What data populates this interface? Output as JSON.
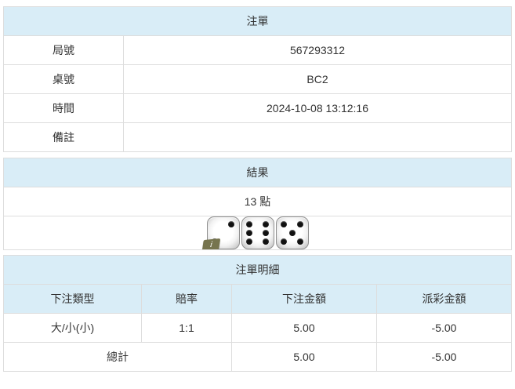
{
  "colors": {
    "panel_header_bg": "#d9edf7",
    "panel_header_text": "#31708f",
    "panel_header_border": "#bce8f1",
    "cell_border": "#dddddd",
    "body_text": "#333333",
    "negative_text": "#ff0000",
    "info_badge_bg": "#76744e",
    "die_pip": "#111111"
  },
  "ticket": {
    "title": "注單",
    "rows": [
      {
        "label": "局號",
        "value": "567293312"
      },
      {
        "label": "桌號",
        "value": "BC2"
      },
      {
        "label": "時間",
        "value": "2024-10-08 13:12:16"
      },
      {
        "label": "備註",
        "value": ""
      }
    ]
  },
  "result": {
    "title": "結果",
    "points": "13 點",
    "dice": [
      2,
      6,
      5
    ],
    "info_badge": "i"
  },
  "details": {
    "title": "注單明細",
    "columns": [
      "下注類型",
      "賠率",
      "下注金額",
      "派彩金額"
    ],
    "rows": [
      {
        "bet_type": "大/小(小)",
        "odds": "1:1",
        "bet_amount": "5.00",
        "payout": "-5.00"
      }
    ],
    "total": {
      "label": "總計",
      "bet_amount": "5.00",
      "payout": "-5.00"
    }
  }
}
